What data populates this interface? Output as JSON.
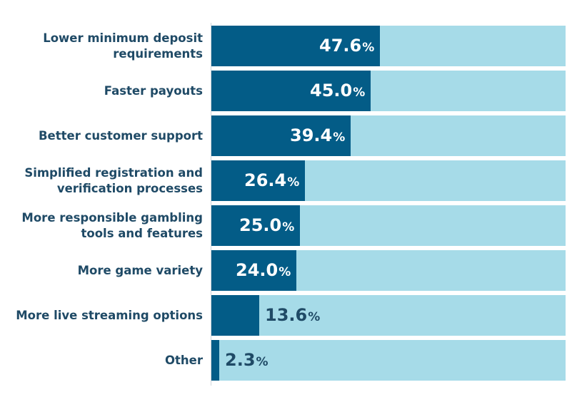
{
  "chart_data": {
    "type": "bar",
    "orientation": "horizontal",
    "categories": [
      "Lower minimum deposit requirements",
      "Faster payouts",
      "Better customer support",
      "Simplified registration and verification processes",
      "More responsible gambling tools and features",
      "More game variety",
      "More live streaming options",
      "Other"
    ],
    "label_lines": [
      [
        "Lower minimum deposit",
        "requirements"
      ],
      [
        "Faster payouts"
      ],
      [
        "Better customer support"
      ],
      [
        "Simplified registration and",
        "verification processes"
      ],
      [
        "More responsible gambling",
        "tools and features"
      ],
      [
        "More game variety"
      ],
      [
        "More live streaming options"
      ],
      [
        "Other"
      ]
    ],
    "values": [
      47.6,
      45.0,
      39.4,
      26.4,
      25.0,
      24.0,
      13.6,
      2.3
    ],
    "value_labels": [
      "47.6",
      "45.0",
      "39.4",
      "26.4",
      "25.0",
      "24.0",
      "13.6",
      "2.3"
    ],
    "unit": "%",
    "xlim": [
      0,
      100
    ],
    "colors": {
      "bar": "#035c87",
      "track": "#a6dbe8",
      "label": "#1f4a66"
    }
  }
}
